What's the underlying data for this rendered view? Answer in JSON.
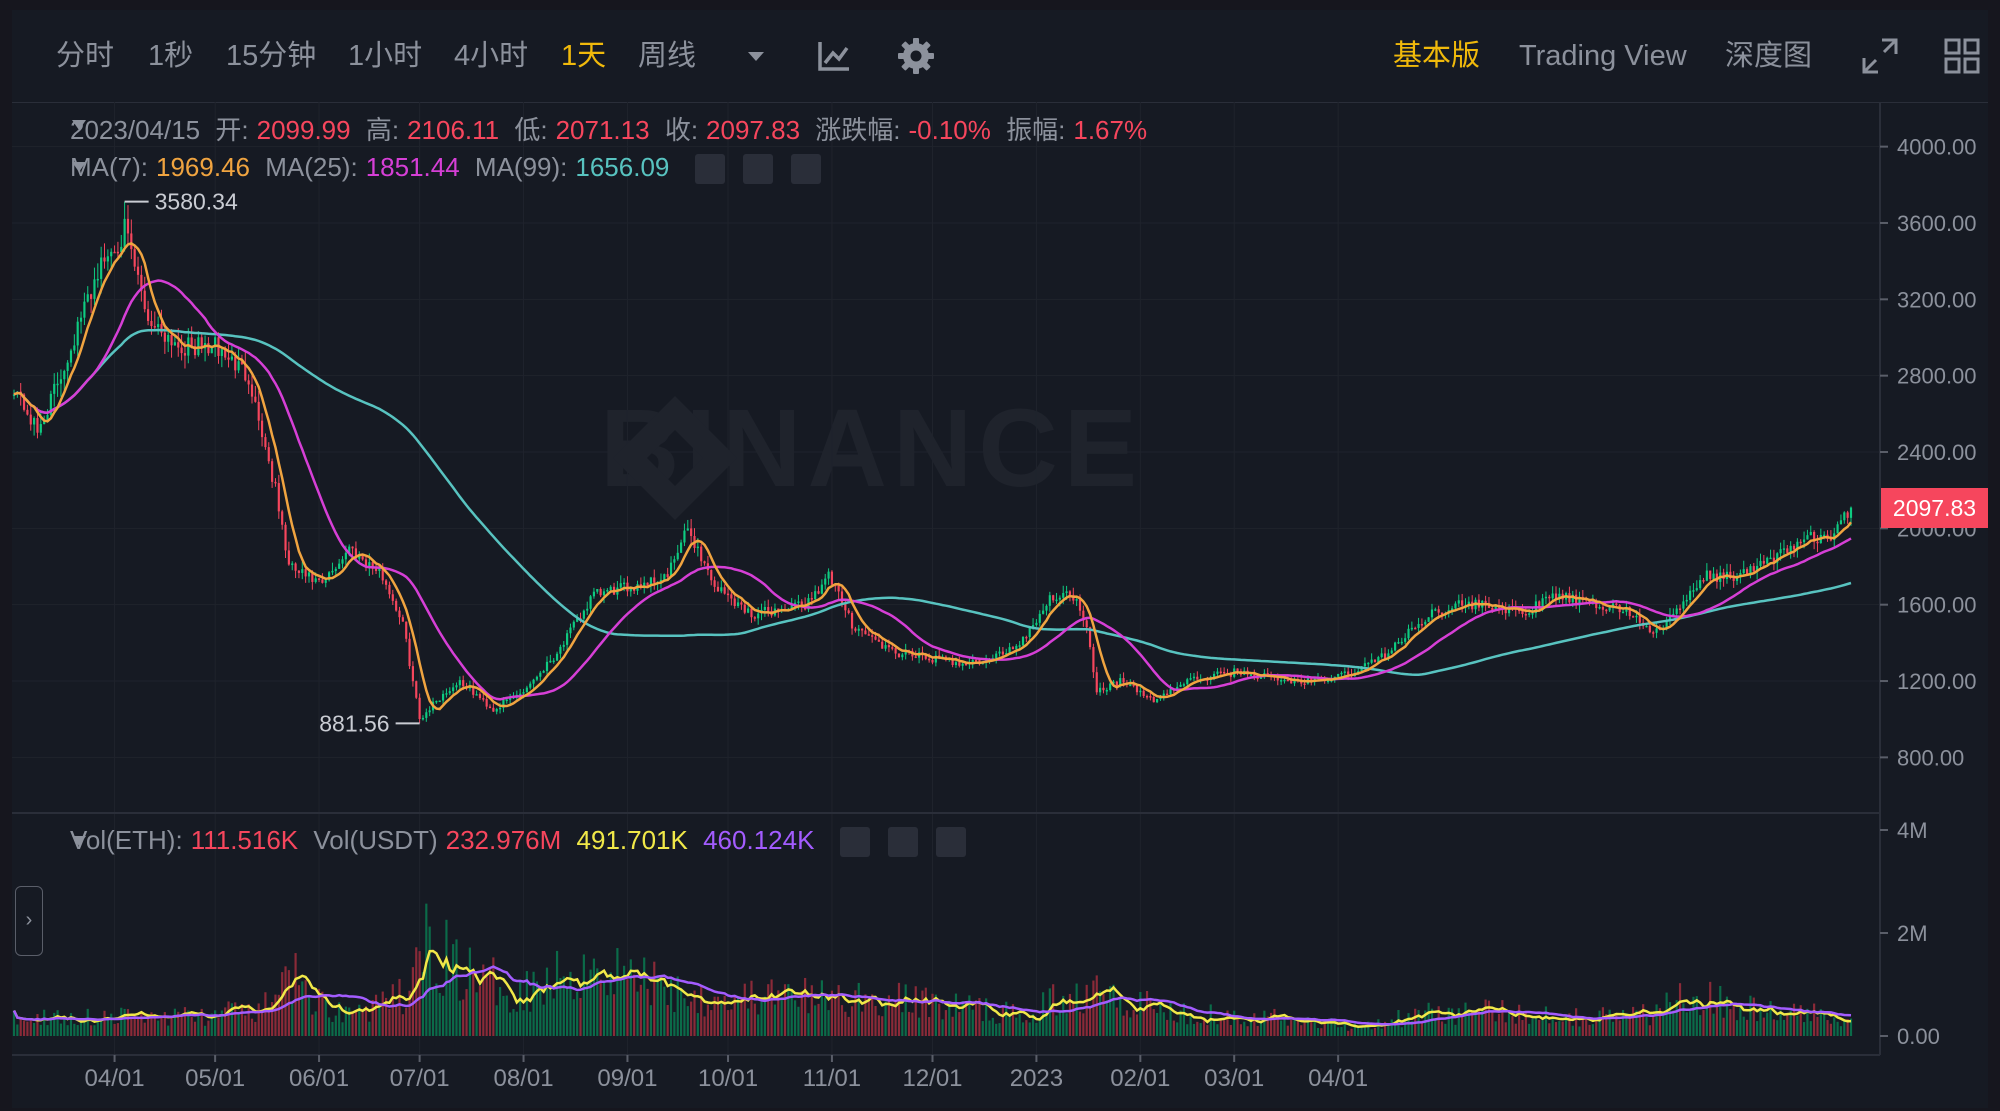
{
  "toolbar": {
    "intervals": [
      "分时",
      "1秒",
      "15分钟",
      "1小时",
      "4小时",
      "1天",
      "周线"
    ],
    "active_interval": "1天",
    "views": [
      "基本版",
      "Trading View",
      "深度图"
    ],
    "active_view": "基本版",
    "icons": [
      "dropdown-caret-icon",
      "indicator-icon",
      "gear-icon",
      "fullscreen-icon",
      "grid-layout-icon"
    ]
  },
  "ohlc": {
    "date": "2023/04/15",
    "open_label": "开:",
    "open": "2099.99",
    "high_label": "高:",
    "high": "2106.11",
    "low_label": "低:",
    "low": "2071.13",
    "close_label": "收:",
    "close": "2097.83",
    "change_label": "涨跌幅:",
    "change": "-0.10%",
    "amplitude_label": "振幅:",
    "amplitude": "1.67%"
  },
  "ma": {
    "ma7_label": "MA(7):",
    "ma7": "1969.46",
    "ma25_label": "MA(25):",
    "ma25": "1851.44",
    "ma99_label": "MA(99):",
    "ma99": "1656.09"
  },
  "volume_legend": {
    "eth_label": "Vol(ETH):",
    "eth": "111.516K",
    "usdt_label": "Vol(USDT)",
    "usdt": "232.976M",
    "ma1": "491.701K",
    "ma2": "460.124K"
  },
  "watermark": "BINANCE",
  "price_badge": "2097.83",
  "colors": {
    "up": "#0ecb81",
    "down": "#f6465d",
    "accent": "#f0b90b",
    "ma7": "#f0a440",
    "ma25": "#d63fd6",
    "ma99": "#58c3c0",
    "vol_ma1": "#f0e848",
    "vol_ma2": "#a35cff"
  },
  "chart_data": {
    "type": "candlestick",
    "price_axis_ticks": [
      "4000.00",
      "3600.00",
      "3200.00",
      "2800.00",
      "2400.00",
      "2000.00",
      "1600.00",
      "1200.00",
      "800.00"
    ],
    "price_ylim": [
      650,
      4150
    ],
    "volume_axis_ticks": [
      "4M",
      "2M",
      "0.00"
    ],
    "volume_ylim": [
      0,
      4000000
    ],
    "x_ticks": [
      "04/01",
      "05/01",
      "06/01",
      "07/01",
      "08/01",
      "09/01",
      "10/01",
      "11/01",
      "12/01",
      "2023",
      "02/01",
      "03/01",
      "04/01"
    ],
    "annotations": {
      "max_label": "3580.34",
      "min_label": "881.56"
    },
    "price_anchors": [
      [
        0,
        2750
      ],
      [
        7,
        2500
      ],
      [
        15,
        2850
      ],
      [
        25,
        3350
      ],
      [
        33,
        3560
      ],
      [
        40,
        3100
      ],
      [
        50,
        2950
      ],
      [
        60,
        2950
      ],
      [
        70,
        2800
      ],
      [
        78,
        2200
      ],
      [
        82,
        1800
      ],
      [
        92,
        1700
      ],
      [
        100,
        1900
      ],
      [
        110,
        1750
      ],
      [
        116,
        1500
      ],
      [
        121,
        1000
      ],
      [
        126,
        1100
      ],
      [
        133,
        1200
      ],
      [
        143,
        1050
      ],
      [
        152,
        1150
      ],
      [
        162,
        1350
      ],
      [
        173,
        1650
      ],
      [
        185,
        1700
      ],
      [
        195,
        1750
      ],
      [
        201,
        2000
      ],
      [
        209,
        1700
      ],
      [
        220,
        1550
      ],
      [
        236,
        1600
      ],
      [
        243,
        1750
      ],
      [
        250,
        1500
      ],
      [
        262,
        1350
      ],
      [
        280,
        1300
      ],
      [
        290,
        1300
      ],
      [
        300,
        1400
      ],
      [
        310,
        1650
      ],
      [
        316,
        1650
      ],
      [
        320,
        1500
      ],
      [
        323,
        1150
      ],
      [
        330,
        1200
      ],
      [
        340,
        1100
      ],
      [
        350,
        1200
      ],
      [
        365,
        1250
      ],
      [
        380,
        1200
      ],
      [
        390,
        1200
      ],
      [
        400,
        1250
      ],
      [
        410,
        1350
      ],
      [
        422,
        1550
      ],
      [
        430,
        1600
      ],
      [
        440,
        1600
      ],
      [
        450,
        1550
      ],
      [
        460,
        1650
      ],
      [
        470,
        1600
      ],
      [
        480,
        1580
      ],
      [
        490,
        1450
      ],
      [
        495,
        1550
      ],
      [
        505,
        1750
      ],
      [
        515,
        1750
      ],
      [
        525,
        1850
      ],
      [
        535,
        1950
      ],
      [
        542,
        1950
      ],
      [
        548,
        2100
      ]
    ],
    "volume_anchors": [
      [
        0,
        380000
      ],
      [
        30,
        400000
      ],
      [
        60,
        420000
      ],
      [
        78,
        620000
      ],
      [
        82,
        1300000
      ],
      [
        90,
        700000
      ],
      [
        100,
        480000
      ],
      [
        110,
        600000
      ],
      [
        118,
        900000
      ],
      [
        124,
        2000000
      ],
      [
        130,
        1500000
      ],
      [
        140,
        1100000
      ],
      [
        150,
        950000
      ],
      [
        162,
        1200000
      ],
      [
        173,
        1500000
      ],
      [
        185,
        1200000
      ],
      [
        200,
        900000
      ],
      [
        210,
        800000
      ],
      [
        230,
        800000
      ],
      [
        250,
        750000
      ],
      [
        270,
        700000
      ],
      [
        290,
        550000
      ],
      [
        300,
        400000
      ],
      [
        310,
        700000
      ],
      [
        318,
        800000
      ],
      [
        322,
        1400000
      ],
      [
        330,
        800000
      ],
      [
        345,
        500000
      ],
      [
        360,
        450000
      ],
      [
        380,
        350000
      ],
      [
        400,
        200000
      ],
      [
        420,
        450000
      ],
      [
        440,
        500000
      ],
      [
        470,
        400000
      ],
      [
        490,
        450000
      ],
      [
        500,
        1000000
      ],
      [
        512,
        600000
      ],
      [
        530,
        450000
      ],
      [
        548,
        420000
      ]
    ]
  }
}
